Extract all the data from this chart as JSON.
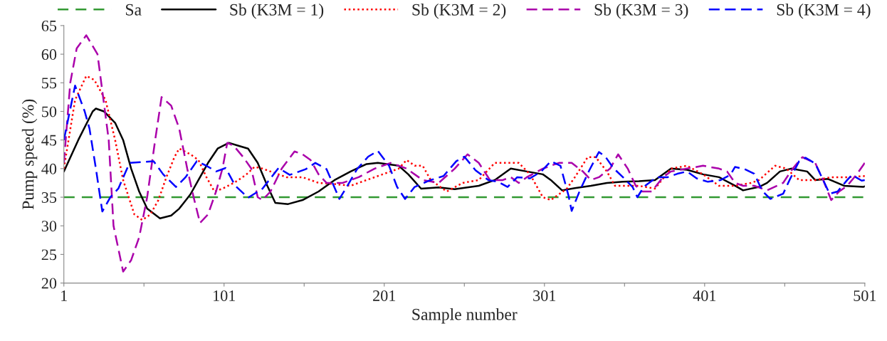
{
  "chart_data": {
    "type": "line",
    "xlabel": "Sample number",
    "ylabel": "Pump speed (%)",
    "xlim": [
      1,
      501
    ],
    "ylim": [
      20,
      65
    ],
    "xticks": [
      1,
      {
        "value": 51,
        "label": null
      },
      101,
      {
        "value": 151,
        "label": null
      },
      201,
      {
        "value": 251,
        "label": null
      },
      301,
      {
        "value": 351,
        "label": null
      },
      401,
      {
        "value": 451,
        "label": null
      },
      501
    ],
    "yticks": [
      20,
      25,
      30,
      35,
      40,
      45,
      50,
      55,
      60,
      65
    ],
    "grid": false,
    "legend": "top",
    "marker": "none",
    "series": [
      {
        "name": "Sa",
        "color": "#339933",
        "line_style": "dashed",
        "x": [
          1,
          500
        ],
        "values": [
          35,
          35
        ]
      },
      {
        "name": "Sb (K3M = 1)",
        "color": "#000000",
        "line_style": "solid",
        "x": [
          1,
          10,
          19,
          21,
          26,
          33,
          38,
          43,
          48,
          53,
          61,
          68,
          73,
          80,
          85,
          91,
          97,
          104,
          110,
          116,
          122,
          128,
          133,
          141,
          150,
          160,
          170,
          180,
          190,
          197,
          210,
          216,
          224,
          235,
          245,
          260,
          270,
          280,
          290,
          300,
          305,
          312,
          320,
          330,
          340,
          350,
          360,
          370,
          380,
          390,
          400,
          410,
          420,
          425,
          435,
          440,
          448,
          455,
          465,
          470,
          478,
          488,
          500,
          501
        ],
        "values": [
          39.5,
          45,
          50,
          50.5,
          50,
          48,
          45,
          40,
          36,
          33,
          31.3,
          31.8,
          33,
          35.5,
          38,
          41,
          43.5,
          44.5,
          44,
          43.5,
          41,
          37,
          34,
          33.8,
          34.5,
          36,
          38,
          39.5,
          40.8,
          41,
          40.5,
          39,
          36.5,
          36.7,
          36.4,
          37,
          38,
          40,
          39.5,
          39,
          38,
          36.2,
          36.6,
          37,
          37.5,
          37.7,
          37.8,
          38,
          40,
          39.8,
          39,
          38.5,
          37,
          36.2,
          36.8,
          37.5,
          39.5,
          40,
          39.5,
          38,
          38.2,
          37,
          36.8,
          36.9
        ]
      },
      {
        "name": "Sb (K3M = 2)",
        "color": "#ff0000",
        "line_style": "dotted",
        "x": [
          1,
          8,
          15,
          20,
          27,
          33,
          38,
          45,
          50,
          55,
          60,
          65,
          70,
          73,
          80,
          85,
          90,
          95,
          100,
          107,
          110,
          115,
          120,
          125,
          130,
          140,
          150,
          160,
          170,
          180,
          190,
          200,
          210,
          215,
          220,
          225,
          230,
          235,
          240,
          250,
          260,
          270,
          285,
          292,
          300,
          305,
          315,
          320,
          328,
          333,
          340,
          345,
          360,
          370,
          380,
          390,
          400,
          410,
          420,
          430,
          435,
          445,
          452,
          460,
          470,
          480,
          490,
          501
        ],
        "values": [
          40,
          52,
          56.2,
          55.5,
          52,
          45,
          38,
          32,
          31,
          32,
          34.5,
          38.5,
          42,
          43.5,
          42.5,
          41.5,
          38.5,
          36,
          36.5,
          37.5,
          38,
          39,
          40.3,
          40,
          39.5,
          38.5,
          38.5,
          37.5,
          37.3,
          37,
          38,
          39,
          40,
          41.5,
          40.5,
          40.5,
          38,
          37,
          36,
          37.5,
          38,
          41,
          41,
          39,
          35,
          34.5,
          36.5,
          38.5,
          42,
          42,
          39.5,
          37,
          37,
          36.5,
          40,
          40.5,
          39,
          37,
          37,
          37.5,
          38,
          40.5,
          40,
          38,
          38,
          38.5,
          38.5,
          38.7
        ]
      },
      {
        "name": "Sb (K3M = 3)",
        "color": "#aa00aa",
        "line_style": "dashed",
        "x": [
          1,
          5,
          9,
          15,
          22,
          29,
          32,
          38,
          43,
          48,
          53,
          58,
          62,
          68,
          73,
          78,
          82,
          86,
          91,
          96,
          100,
          103,
          107,
          113,
          118,
          122,
          125,
          130,
          137,
          145,
          150,
          155,
          160,
          165,
          175,
          185,
          195,
          205,
          215,
          225,
          235,
          245,
          253,
          260,
          267,
          275,
          280,
          285,
          290,
          300,
          310,
          318,
          325,
          330,
          335,
          342,
          347,
          353,
          358,
          362,
          368,
          375,
          380,
          390,
          400,
          410,
          415,
          420,
          425,
          432,
          440,
          450,
          456,
          462,
          470,
          475,
          480,
          485,
          490,
          496,
          501
        ],
        "values": [
          41,
          55,
          61,
          63.3,
          60,
          45,
          30,
          22,
          24,
          28,
          35,
          45,
          52.5,
          51,
          47,
          40,
          35,
          30.5,
          32,
          36,
          40,
          44.5,
          44,
          42,
          40,
          35,
          34.5,
          36,
          40,
          43,
          42.5,
          41.5,
          39,
          37.5,
          37.5,
          38.5,
          40,
          41,
          40,
          38,
          37.5,
          40,
          42.5,
          41,
          38,
          38,
          38.5,
          37.5,
          38.5,
          40,
          41,
          41,
          39.5,
          38,
          38.5,
          40,
          42.5,
          40,
          37,
          36,
          36,
          38.5,
          39.5,
          40,
          40.5,
          40,
          39.5,
          37.5,
          37,
          37,
          36.2,
          37.5,
          40,
          42,
          41,
          38,
          34.5,
          36,
          37,
          39,
          41
        ]
      },
      {
        "name": "Sb (K3M = 4)",
        "color": "#0000ff",
        "line_style": "dashed",
        "x": [
          1,
          8,
          14,
          17,
          21,
          25,
          30,
          35,
          42,
          57,
          63,
          71,
          77,
          84,
          90,
          96,
          102,
          108,
          116,
          125,
          135,
          142,
          152,
          158,
          165,
          173,
          177,
          184,
          191,
          197,
          204,
          209,
          214,
          220,
          229,
          238,
          246,
          251,
          258,
          266,
          272,
          278,
          284,
          292,
          299,
          305,
          311,
          316,
          318,
          323,
          329,
          335,
          339,
          344,
          350,
          356,
          359,
          363,
          371,
          378,
          384,
          390,
          396,
          403,
          411,
          417,
          420,
          426,
          432,
          437,
          442,
          450,
          454,
          460,
          464,
          470,
          475,
          479,
          484,
          490,
          493,
          499,
          501
        ],
        "values": [
          45,
          54.5,
          50,
          47,
          40,
          32.5,
          35,
          36.5,
          41,
          41.3,
          39,
          36.8,
          38.5,
          41.3,
          40.5,
          39.5,
          40.1,
          37,
          34.9,
          36.5,
          40.1,
          38.9,
          39.9,
          41,
          39.9,
          34.7,
          36.5,
          39.9,
          42.1,
          43.1,
          40.5,
          36.8,
          34.7,
          36.8,
          37.9,
          38.7,
          41.3,
          42.1,
          39.7,
          38,
          37.7,
          36.8,
          38.5,
          38.3,
          39.5,
          41.3,
          40.5,
          35.3,
          32.6,
          36.1,
          39.7,
          42.9,
          42.1,
          40.1,
          38.5,
          36.8,
          35,
          36.8,
          38.5,
          38.5,
          39.1,
          39.5,
          38.3,
          37.7,
          38,
          38.9,
          40.3,
          39.9,
          39.1,
          36.1,
          34.7,
          35.6,
          38,
          41.3,
          41.9,
          40.9,
          38,
          35.6,
          36,
          38,
          38.9,
          37.9,
          38
        ]
      }
    ]
  }
}
